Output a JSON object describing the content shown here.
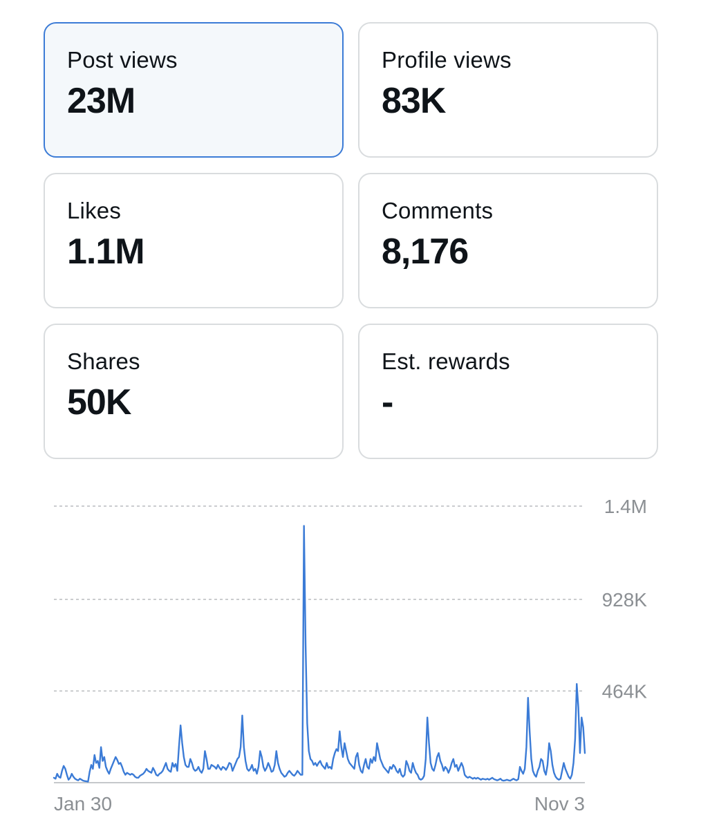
{
  "metrics": [
    {
      "label": "Post views",
      "value": "23M",
      "selected": true
    },
    {
      "label": "Profile views",
      "value": "83K",
      "selected": false
    },
    {
      "label": "Likes",
      "value": "1.1M",
      "selected": false
    },
    {
      "label": "Comments",
      "value": "8,176",
      "selected": false
    },
    {
      "label": "Shares",
      "value": "50K",
      "selected": false
    },
    {
      "label": "Est. rewards",
      "value": "-",
      "selected": false
    }
  ],
  "colors": {
    "accent": "#3b7bd6",
    "line": "#3b7bd6",
    "grid": "#b9bcbf",
    "axis_text": "#8b8f93",
    "card_border": "#d9dcde",
    "selected_bg": "#f4f8fb"
  },
  "chart_data": {
    "type": "line",
    "x_start_label": "Jan 30",
    "x_end_label": "Nov 3",
    "y_ticks": [
      {
        "value": 1400000,
        "label": "1.4M"
      },
      {
        "value": 928000,
        "label": "928K"
      },
      {
        "value": 464000,
        "label": "464K"
      }
    ],
    "ylim": [
      0,
      1400000
    ],
    "grid": true,
    "series": [
      {
        "values": [
          25000,
          20000,
          45000,
          30000,
          25000,
          60000,
          85000,
          70000,
          40000,
          15000,
          25000,
          45000,
          30000,
          20000,
          15000,
          12000,
          20000,
          15000,
          10000,
          8000,
          7000,
          5000,
          55000,
          90000,
          70000,
          140000,
          100000,
          110000,
          75000,
          180000,
          110000,
          130000,
          80000,
          60000,
          45000,
          70000,
          90000,
          110000,
          130000,
          115000,
          95000,
          100000,
          80000,
          55000,
          40000,
          50000,
          45000,
          40000,
          45000,
          40000,
          30000,
          25000,
          25000,
          35000,
          40000,
          45000,
          55000,
          70000,
          60000,
          55000,
          50000,
          75000,
          60000,
          40000,
          35000,
          45000,
          50000,
          60000,
          80000,
          100000,
          70000,
          60000,
          55000,
          100000,
          80000,
          95000,
          60000,
          180000,
          290000,
          200000,
          130000,
          90000,
          80000,
          80000,
          120000,
          100000,
          70000,
          60000,
          65000,
          80000,
          60000,
          50000,
          70000,
          160000,
          120000,
          70000,
          70000,
          90000,
          85000,
          80000,
          70000,
          90000,
          75000,
          65000,
          80000,
          75000,
          65000,
          80000,
          100000,
          95000,
          60000,
          80000,
          100000,
          120000,
          130000,
          180000,
          340000,
          180000,
          110000,
          70000,
          60000,
          70000,
          90000,
          60000,
          70000,
          45000,
          80000,
          160000,
          130000,
          80000,
          60000,
          75000,
          100000,
          80000,
          55000,
          60000,
          90000,
          160000,
          100000,
          70000,
          50000,
          40000,
          30000,
          35000,
          50000,
          60000,
          50000,
          40000,
          35000,
          45000,
          60000,
          50000,
          40000,
          40000,
          1300000,
          700000,
          300000,
          160000,
          120000,
          110000,
          90000,
          100000,
          85000,
          100000,
          110000,
          90000,
          80000,
          70000,
          100000,
          75000,
          80000,
          70000,
          120000,
          150000,
          170000,
          160000,
          260000,
          180000,
          130000,
          200000,
          160000,
          120000,
          100000,
          90000,
          80000,
          70000,
          130000,
          150000,
          90000,
          60000,
          50000,
          90000,
          120000,
          80000,
          70000,
          120000,
          100000,
          130000,
          110000,
          200000,
          160000,
          120000,
          100000,
          80000,
          70000,
          60000,
          50000,
          80000,
          70000,
          90000,
          80000,
          60000,
          50000,
          70000,
          40000,
          30000,
          40000,
          110000,
          90000,
          60000,
          50000,
          100000,
          70000,
          50000,
          40000,
          20000,
          15000,
          20000,
          35000,
          120000,
          330000,
          200000,
          100000,
          70000,
          60000,
          90000,
          130000,
          150000,
          110000,
          90000,
          60000,
          80000,
          70000,
          50000,
          70000,
          100000,
          120000,
          80000,
          90000,
          60000,
          80000,
          100000,
          80000,
          40000,
          30000,
          25000,
          30000,
          25000,
          20000,
          25000,
          20000,
          25000,
          20000,
          15000,
          20000,
          18000,
          16000,
          20000,
          15000,
          20000,
          25000,
          18000,
          15000,
          12000,
          15000,
          20000,
          12000,
          10000,
          12000,
          15000,
          12000,
          10000,
          15000,
          20000,
          15000,
          12000,
          18000,
          80000,
          60000,
          45000,
          70000,
          180000,
          430000,
          260000,
          120000,
          60000,
          40000,
          30000,
          60000,
          80000,
          120000,
          110000,
          60000,
          40000,
          90000,
          200000,
          160000,
          90000,
          50000,
          30000,
          20000,
          15000,
          20000,
          60000,
          100000,
          70000,
          50000,
          30000,
          20000,
          40000,
          100000,
          220000,
          500000,
          380000,
          150000,
          330000,
          280000,
          150000
        ]
      }
    ]
  }
}
